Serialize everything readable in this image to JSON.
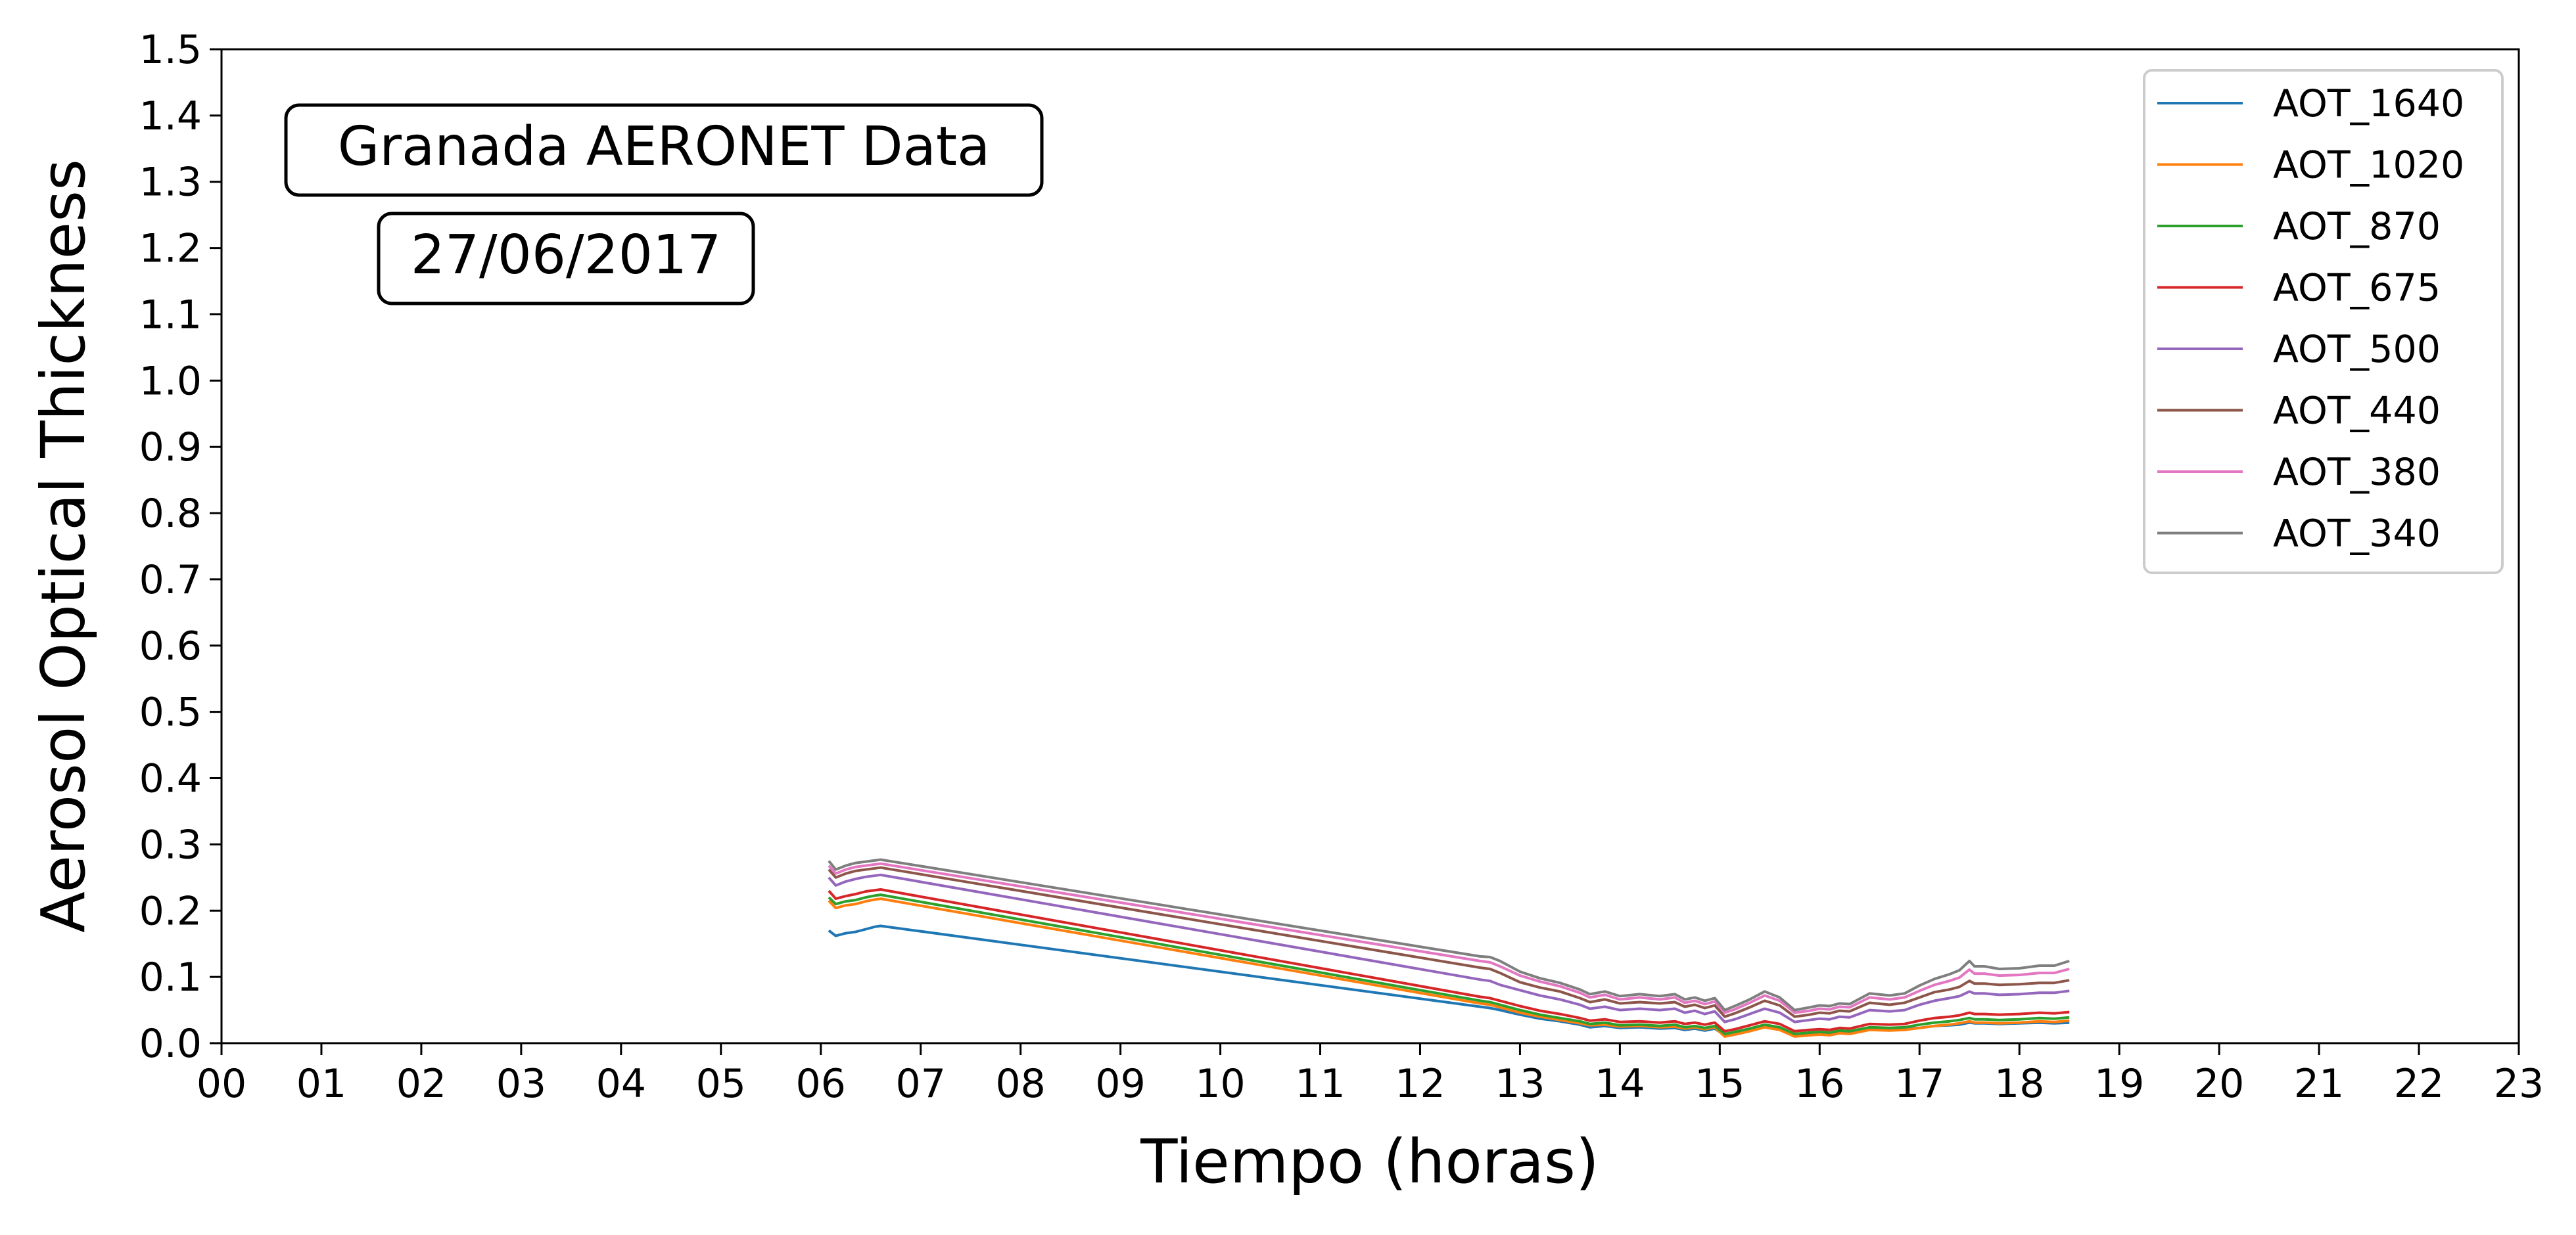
{
  "chart_data": {
    "type": "line",
    "xlabel": "Tiempo (horas)",
    "ylabel": "Aerosol Optical Thickness",
    "xlim": [
      0,
      23
    ],
    "ylim": [
      0,
      1.5
    ],
    "x_ticks": [
      0,
      1,
      2,
      3,
      4,
      5,
      6,
      7,
      8,
      9,
      10,
      11,
      12,
      13,
      14,
      15,
      16,
      17,
      18,
      19,
      20,
      21,
      22,
      23
    ],
    "x_tick_labels": [
      "00",
      "01",
      "02",
      "03",
      "04",
      "05",
      "06",
      "07",
      "08",
      "09",
      "10",
      "11",
      "12",
      "13",
      "14",
      "15",
      "16",
      "17",
      "18",
      "19",
      "20",
      "21",
      "22",
      "23"
    ],
    "y_ticks": [
      0,
      0.1,
      0.2,
      0.3,
      0.4,
      0.5,
      0.6,
      0.7,
      0.8,
      0.9,
      1.0,
      1.1,
      1.2,
      1.3,
      1.4,
      1.5
    ],
    "y_tick_labels": [
      "0.0",
      "0.1",
      "0.2",
      "0.3",
      "0.4",
      "0.5",
      "0.6",
      "0.7",
      "0.8",
      "0.9",
      "1.0",
      "1.1",
      "1.2",
      "1.3",
      "1.4",
      "1.5"
    ],
    "grid": false,
    "legend_position": "top-right",
    "annotations": [
      "Granada AERONET Data",
      "27/06/2017"
    ],
    "x": [
      6.08,
      6.15,
      6.25,
      6.35,
      6.45,
      6.55,
      6.6,
      12.6,
      12.7,
      12.8,
      13.0,
      13.2,
      13.4,
      13.6,
      13.7,
      13.85,
      14.0,
      14.2,
      14.4,
      14.55,
      14.65,
      14.75,
      14.85,
      14.95,
      15.05,
      15.15,
      15.3,
      15.45,
      15.6,
      15.75,
      15.9,
      16.0,
      16.1,
      16.2,
      16.3,
      16.5,
      16.7,
      16.85,
      17.0,
      17.15,
      17.3,
      17.4,
      17.5,
      17.55,
      17.65,
      17.8,
      18.0,
      18.2,
      18.35,
      18.5
    ],
    "series": [
      {
        "name": "AOT_1640",
        "color": "#1f77b4",
        "values": [
          0.17,
          0.162,
          0.166,
          0.168,
          0.172,
          0.176,
          0.177,
          0.055,
          0.053,
          0.05,
          0.043,
          0.037,
          0.033,
          0.028,
          0.024,
          0.026,
          0.023,
          0.024,
          0.022,
          0.023,
          0.02,
          0.022,
          0.019,
          0.022,
          0.012,
          0.016,
          0.021,
          0.026,
          0.022,
          0.013,
          0.014,
          0.016,
          0.015,
          0.017,
          0.016,
          0.022,
          0.02,
          0.021,
          0.023,
          0.026,
          0.027,
          0.028,
          0.031,
          0.03,
          0.03,
          0.029,
          0.03,
          0.031,
          0.03,
          0.031
        ]
      },
      {
        "name": "AOT_1020",
        "color": "#ff7f0e",
        "values": [
          0.215,
          0.204,
          0.208,
          0.21,
          0.214,
          0.217,
          0.218,
          0.06,
          0.058,
          0.054,
          0.046,
          0.04,
          0.035,
          0.03,
          0.027,
          0.028,
          0.025,
          0.026,
          0.024,
          0.025,
          0.022,
          0.024,
          0.021,
          0.024,
          0.01,
          0.013,
          0.018,
          0.024,
          0.02,
          0.01,
          0.012,
          0.013,
          0.012,
          0.015,
          0.014,
          0.02,
          0.019,
          0.02,
          0.023,
          0.026,
          0.028,
          0.03,
          0.033,
          0.031,
          0.031,
          0.03,
          0.031,
          0.033,
          0.032,
          0.034
        ]
      },
      {
        "name": "AOT_870",
        "color": "#2ca02c",
        "values": [
          0.22,
          0.21,
          0.214,
          0.216,
          0.22,
          0.223,
          0.224,
          0.064,
          0.062,
          0.058,
          0.05,
          0.043,
          0.038,
          0.033,
          0.029,
          0.031,
          0.027,
          0.028,
          0.026,
          0.028,
          0.024,
          0.026,
          0.023,
          0.026,
          0.014,
          0.017,
          0.022,
          0.028,
          0.024,
          0.014,
          0.016,
          0.017,
          0.016,
          0.019,
          0.018,
          0.024,
          0.023,
          0.024,
          0.028,
          0.031,
          0.033,
          0.035,
          0.038,
          0.036,
          0.036,
          0.035,
          0.036,
          0.038,
          0.037,
          0.039
        ]
      },
      {
        "name": "AOT_675",
        "color": "#d62728",
        "values": [
          0.23,
          0.218,
          0.222,
          0.225,
          0.229,
          0.231,
          0.232,
          0.07,
          0.068,
          0.064,
          0.056,
          0.049,
          0.044,
          0.038,
          0.034,
          0.036,
          0.032,
          0.033,
          0.031,
          0.033,
          0.029,
          0.031,
          0.028,
          0.031,
          0.018,
          0.021,
          0.027,
          0.033,
          0.029,
          0.018,
          0.02,
          0.021,
          0.02,
          0.023,
          0.022,
          0.029,
          0.028,
          0.029,
          0.034,
          0.038,
          0.04,
          0.042,
          0.046,
          0.044,
          0.044,
          0.043,
          0.044,
          0.046,
          0.045,
          0.047
        ]
      },
      {
        "name": "AOT_500",
        "color": "#9467bd",
        "values": [
          0.25,
          0.238,
          0.244,
          0.248,
          0.251,
          0.253,
          0.254,
          0.096,
          0.094,
          0.088,
          0.08,
          0.072,
          0.066,
          0.058,
          0.052,
          0.055,
          0.05,
          0.052,
          0.05,
          0.052,
          0.046,
          0.049,
          0.044,
          0.048,
          0.032,
          0.036,
          0.044,
          0.052,
          0.046,
          0.032,
          0.035,
          0.037,
          0.036,
          0.04,
          0.039,
          0.05,
          0.048,
          0.05,
          0.058,
          0.064,
          0.068,
          0.071,
          0.078,
          0.075,
          0.075,
          0.073,
          0.074,
          0.076,
          0.076,
          0.079
        ]
      },
      {
        "name": "AOT_440",
        "color": "#8c564b",
        "values": [
          0.262,
          0.25,
          0.256,
          0.26,
          0.262,
          0.264,
          0.265,
          0.114,
          0.112,
          0.106,
          0.092,
          0.084,
          0.078,
          0.068,
          0.062,
          0.066,
          0.06,
          0.062,
          0.06,
          0.062,
          0.055,
          0.058,
          0.053,
          0.057,
          0.04,
          0.045,
          0.054,
          0.064,
          0.057,
          0.04,
          0.043,
          0.046,
          0.045,
          0.049,
          0.048,
          0.061,
          0.058,
          0.061,
          0.069,
          0.077,
          0.081,
          0.085,
          0.094,
          0.09,
          0.09,
          0.088,
          0.089,
          0.091,
          0.091,
          0.095
        ]
      },
      {
        "name": "AOT_380",
        "color": "#e377c2",
        "values": [
          0.268,
          0.256,
          0.262,
          0.266,
          0.268,
          0.27,
          0.271,
          0.124,
          0.122,
          0.116,
          0.102,
          0.093,
          0.086,
          0.076,
          0.069,
          0.073,
          0.066,
          0.069,
          0.066,
          0.069,
          0.061,
          0.064,
          0.059,
          0.063,
          0.046,
          0.051,
          0.061,
          0.072,
          0.064,
          0.046,
          0.049,
          0.052,
          0.051,
          0.055,
          0.054,
          0.069,
          0.066,
          0.069,
          0.079,
          0.088,
          0.094,
          0.099,
          0.111,
          0.105,
          0.105,
          0.102,
          0.103,
          0.106,
          0.106,
          0.112
        ]
      },
      {
        "name": "AOT_340",
        "color": "#7f7f7f",
        "values": [
          0.275,
          0.262,
          0.268,
          0.272,
          0.274,
          0.276,
          0.277,
          0.131,
          0.13,
          0.124,
          0.108,
          0.098,
          0.091,
          0.081,
          0.074,
          0.078,
          0.071,
          0.074,
          0.071,
          0.074,
          0.066,
          0.069,
          0.064,
          0.068,
          0.05,
          0.056,
          0.066,
          0.078,
          0.069,
          0.05,
          0.054,
          0.057,
          0.056,
          0.06,
          0.059,
          0.075,
          0.072,
          0.075,
          0.087,
          0.097,
          0.104,
          0.11,
          0.124,
          0.116,
          0.116,
          0.112,
          0.113,
          0.117,
          0.117,
          0.124
        ]
      }
    ]
  }
}
